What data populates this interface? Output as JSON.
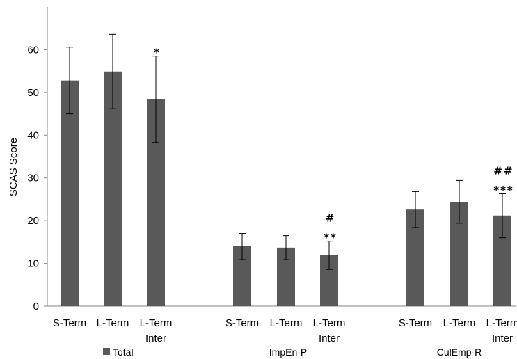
{
  "chart_data": {
    "type": "bar",
    "ylabel": "SCAS Score",
    "xlabel": "",
    "ylim": [
      0,
      70
    ],
    "yticks": [
      0,
      10,
      20,
      30,
      40,
      50,
      60
    ],
    "grid": false,
    "legend": {
      "placement": "bottom-left",
      "entries": [
        "Total"
      ]
    },
    "bar_color": "#595959",
    "error_color": "#000000",
    "groups": [
      {
        "name": "Total",
        "bars": [
          {
            "category": [
              "S-Term"
            ],
            "value": 52.8,
            "err_low": 45.0,
            "err_high": 60.6,
            "annotation": []
          },
          {
            "category": [
              "L-Term"
            ],
            "value": 54.9,
            "err_low": 46.2,
            "err_high": 63.6,
            "annotation": []
          },
          {
            "category": [
              "L-Term",
              "Inter"
            ],
            "value": 48.4,
            "err_low": 38.3,
            "err_high": 58.5,
            "annotation": [
              "*"
            ]
          }
        ]
      },
      {
        "name": "ImpEn-P",
        "bars": [
          {
            "category": [
              "S-Term"
            ],
            "value": 14.0,
            "err_low": 10.9,
            "err_high": 17.0,
            "annotation": []
          },
          {
            "category": [
              "L-Term"
            ],
            "value": 13.7,
            "err_low": 10.9,
            "err_high": 16.5,
            "annotation": []
          },
          {
            "category": [
              "L-Term",
              "Inter"
            ],
            "value": 11.9,
            "err_low": 8.6,
            "err_high": 15.2,
            "annotation": [
              "#",
              "**"
            ]
          }
        ]
      },
      {
        "name": "CulEmp-R",
        "bars": [
          {
            "category": [
              "S-Term"
            ],
            "value": 22.6,
            "err_low": 18.4,
            "err_high": 26.8,
            "annotation": []
          },
          {
            "category": [
              "L-Term"
            ],
            "value": 24.4,
            "err_low": 19.4,
            "err_high": 29.4,
            "annotation": []
          },
          {
            "category": [
              "L-Term",
              "Inter"
            ],
            "value": 21.2,
            "err_low": 16.0,
            "err_high": 26.3,
            "annotation": [
              "##",
              "***"
            ]
          }
        ]
      }
    ]
  }
}
